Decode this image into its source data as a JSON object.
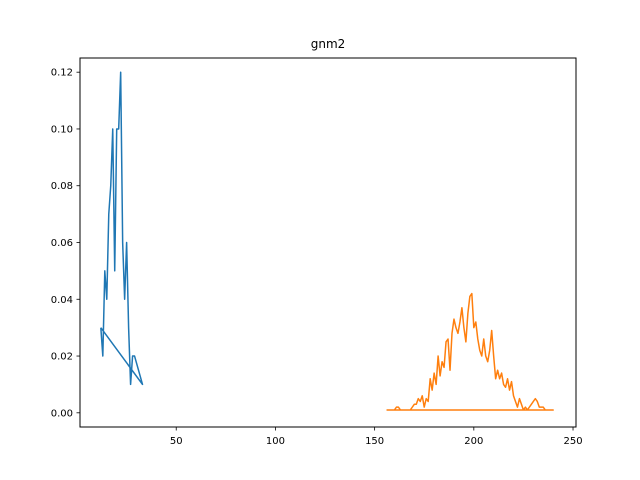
{
  "chart_data": {
    "type": "line",
    "title": "gnm2",
    "xlabel": "",
    "ylabel": "",
    "xlim": [
      1.5,
      251.5
    ],
    "ylim": [
      -0.005,
      0.125
    ],
    "xticks": [
      50,
      100,
      150,
      200,
      250
    ],
    "yticks": [
      0.0,
      0.02,
      0.04,
      0.06,
      0.08,
      0.1,
      0.12
    ],
    "ytick_labels": [
      "0.00",
      "0.02",
      "0.04",
      "0.06",
      "0.08",
      "0.10",
      "0.12"
    ],
    "grid": false,
    "legend": false,
    "series": [
      {
        "color": "#1f77b4",
        "x": [
          12,
          13,
          14,
          15,
          16,
          17,
          18,
          19,
          20,
          21,
          22,
          23,
          24,
          25,
          26,
          27,
          28,
          29,
          33,
          12
        ],
        "y": [
          0.03,
          0.02,
          0.05,
          0.04,
          0.07,
          0.08,
          0.1,
          0.05,
          0.1,
          0.1,
          0.12,
          0.06,
          0.04,
          0.06,
          0.03,
          0.01,
          0.02,
          0.02,
          0.01,
          0.03
        ]
      },
      {
        "color": "#ff7f0e",
        "x": [
          156,
          158,
          160,
          161,
          162,
          163,
          164,
          165,
          166,
          167,
          168,
          169,
          170,
          171,
          172,
          173,
          174,
          175,
          176,
          177,
          178,
          179,
          180,
          181,
          182,
          183,
          184,
          185,
          186,
          187,
          188,
          189,
          190,
          191,
          192,
          193,
          194,
          195,
          196,
          197,
          198,
          199,
          200,
          201,
          202,
          203,
          204,
          205,
          206,
          207,
          208,
          209,
          210,
          211,
          212,
          213,
          214,
          215,
          216,
          217,
          218,
          219,
          220,
          221,
          222,
          223,
          224,
          225,
          226,
          227,
          228,
          229,
          230,
          231,
          232,
          233,
          234,
          235,
          236,
          237,
          238,
          239,
          240,
          156
        ],
        "y": [
          0.001,
          0.001,
          0.001,
          0.002,
          0.002,
          0.001,
          0.001,
          0.001,
          0.001,
          0.001,
          0.001,
          0.002,
          0.003,
          0.003,
          0.005,
          0.004,
          0.006,
          0.002,
          0.005,
          0.004,
          0.012,
          0.008,
          0.014,
          0.01,
          0.02,
          0.013,
          0.018,
          0.016,
          0.025,
          0.026,
          0.015,
          0.028,
          0.033,
          0.03,
          0.028,
          0.032,
          0.037,
          0.03,
          0.025,
          0.035,
          0.041,
          0.042,
          0.03,
          0.032,
          0.026,
          0.022,
          0.02,
          0.026,
          0.02,
          0.018,
          0.022,
          0.029,
          0.02,
          0.012,
          0.015,
          0.012,
          0.014,
          0.01,
          0.009,
          0.012,
          0.008,
          0.011,
          0.006,
          0.004,
          0.002,
          0.005,
          0.003,
          0.001,
          0.002,
          0.001,
          0.002,
          0.003,
          0.004,
          0.005,
          0.004,
          0.002,
          0.002,
          0.002,
          0.001,
          0.001,
          0.001,
          0.001,
          0.001,
          0.001
        ]
      }
    ]
  }
}
